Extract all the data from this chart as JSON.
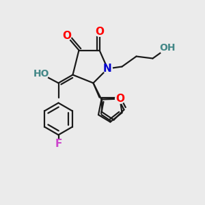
{
  "bg_color": "#ebebeb",
  "bond_color": "#1a1a1a",
  "bond_width": 1.6,
  "atom_colors": {
    "O": "#ff0000",
    "N": "#0000cc",
    "F": "#cc44cc",
    "HO": "#448888",
    "C": "#1a1a1a"
  },
  "dbl_sep": 0.12
}
